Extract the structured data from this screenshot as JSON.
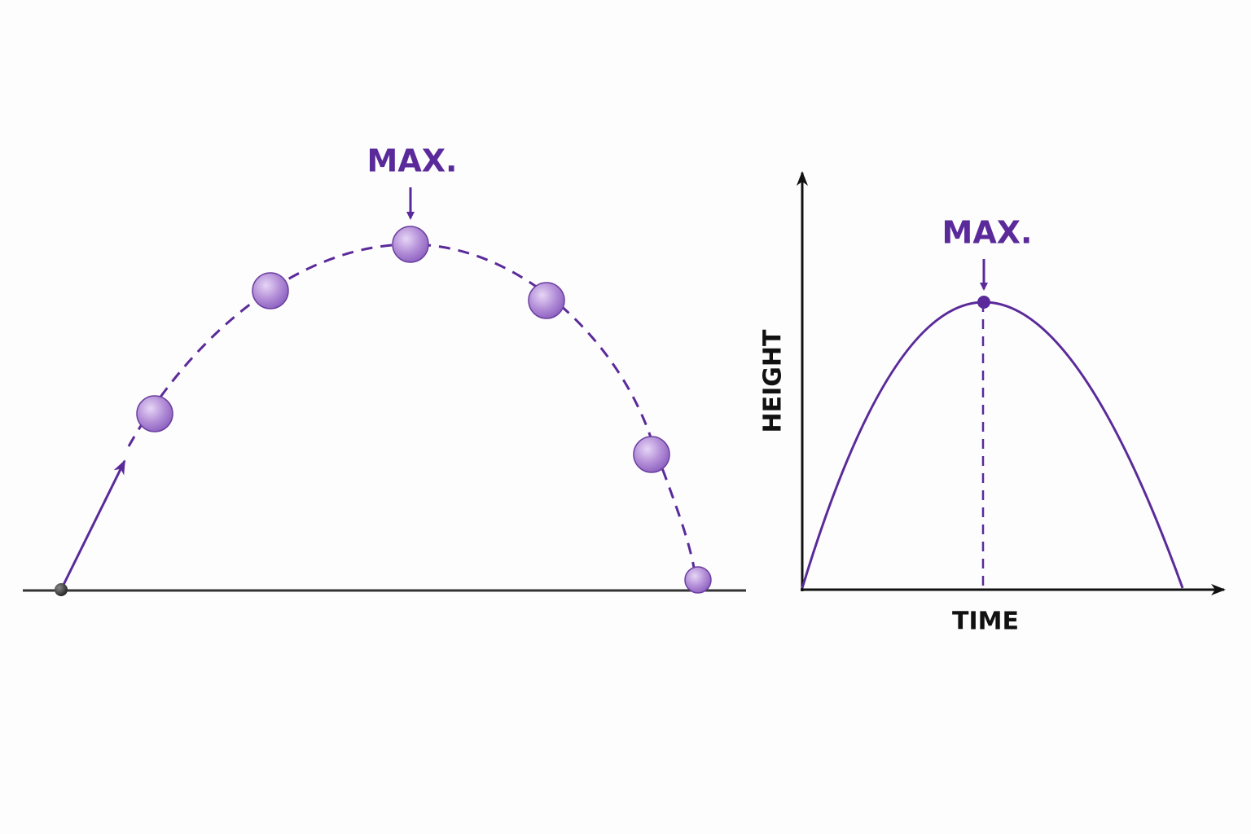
{
  "trajectory": {
    "max_label": "MAX."
  },
  "graph": {
    "max_label": "MAX.",
    "y_axis_label": "HEIGHT",
    "x_axis_label": "TIME"
  }
}
